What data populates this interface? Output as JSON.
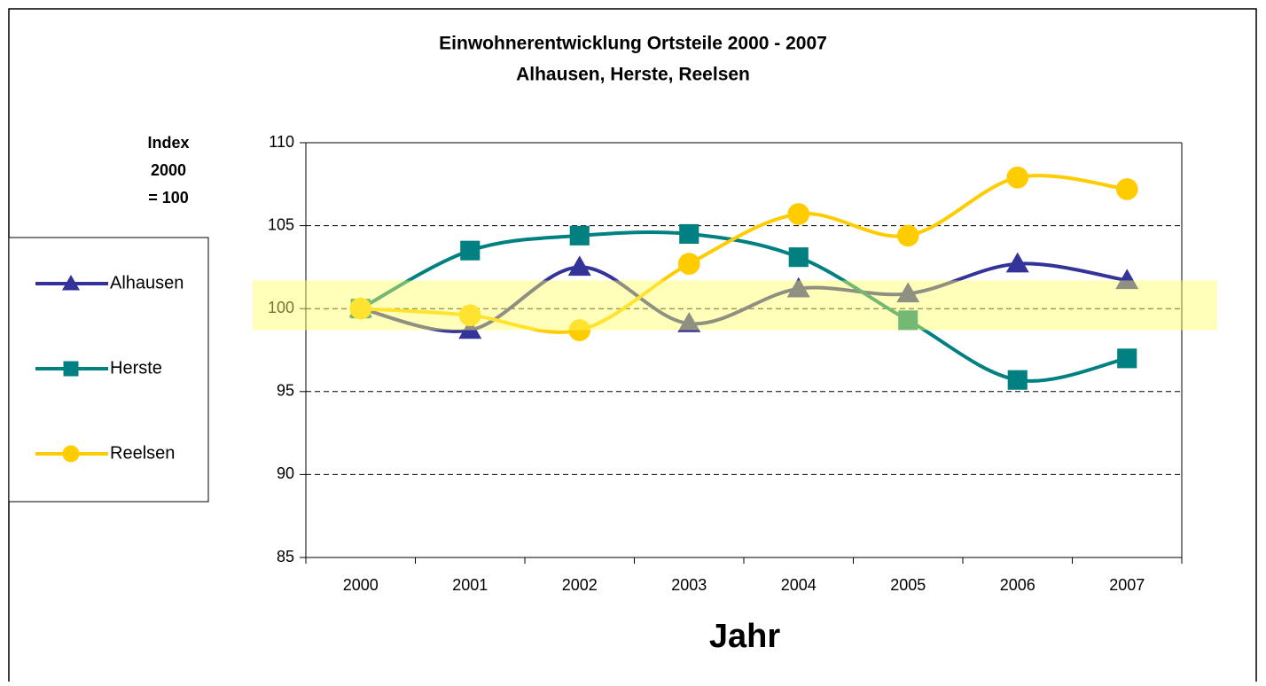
{
  "chart_data": {
    "type": "line",
    "title": [
      "Einwohnerentwicklung Ortsteile 2000 - 2007",
      "Alhausen, Herste, Reelsen"
    ],
    "y_label": [
      "Index",
      "2000",
      "= 100"
    ],
    "x_label": "Jahr",
    "categories": [
      "2000",
      "2001",
      "2002",
      "2003",
      "2004",
      "2005",
      "2006",
      "2007"
    ],
    "series": [
      {
        "name": "Alhausen",
        "color": "#333399",
        "marker": "triangle",
        "values": [
          100,
          98.7,
          102.5,
          99.1,
          101.2,
          100.9,
          102.7,
          101.7
        ]
      },
      {
        "name": "Herste",
        "color": "#008080",
        "marker": "square",
        "values": [
          100,
          103.5,
          104.4,
          104.5,
          103.1,
          99.3,
          95.7,
          97.0
        ]
      },
      {
        "name": "Reelsen",
        "color": "#FFCC00",
        "marker": "circle",
        "values": [
          100,
          99.6,
          98.7,
          102.7,
          105.7,
          104.4,
          107.9,
          107.2
        ]
      }
    ],
    "ylim": [
      85,
      110
    ],
    "yticks": [
      85,
      90,
      95,
      100,
      105,
      110
    ],
    "grid": true,
    "smooth": true,
    "legend": "left",
    "highlight_range": [
      98.7,
      101.7
    ],
    "highlight_color": "#FFFF66"
  }
}
